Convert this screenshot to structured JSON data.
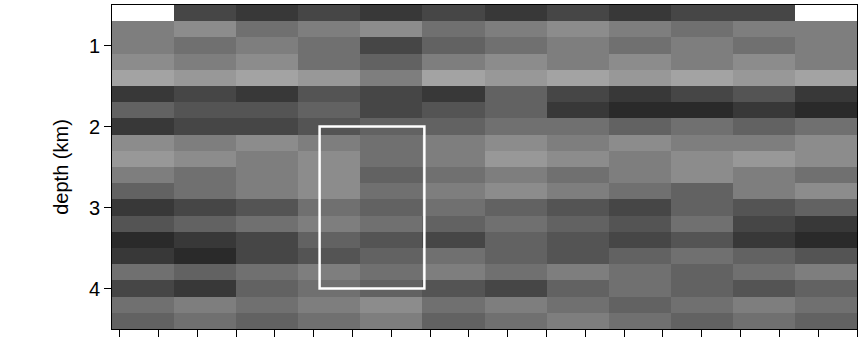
{
  "chart_data": {
    "type": "heatmap",
    "y_label": "depth (km)",
    "x": [
      0.6,
      2.2,
      3.8,
      5.4,
      7.0,
      8.6,
      10.2,
      11.8,
      13.4,
      15.0,
      16.6,
      18.2
    ],
    "depth": [
      0.6,
      0.8,
      1.0,
      1.2,
      1.4,
      1.6,
      1.8,
      2.0,
      2.2,
      2.4,
      2.6,
      2.8,
      3.0,
      3.2,
      3.4,
      3.6,
      3.8,
      4.0,
      4.2,
      4.4
    ],
    "amplitude": [
      [
        null,
        0.5,
        0.6,
        0.5,
        0.6,
        0.5,
        0.6,
        0.5,
        0.6,
        0.5,
        0.5,
        null
      ],
      [
        0.1,
        0.0,
        0.2,
        0.1,
        0.0,
        0.2,
        0.1,
        0.0,
        0.1,
        0.2,
        0.1,
        0.1
      ],
      [
        0.1,
        0.2,
        0.1,
        0.2,
        0.5,
        0.3,
        0.2,
        0.1,
        0.2,
        0.1,
        0.2,
        0.1
      ],
      [
        0.0,
        0.1,
        0.0,
        0.2,
        0.3,
        0.1,
        0.0,
        0.1,
        0.0,
        0.1,
        0.0,
        0.1
      ],
      [
        -0.2,
        -0.1,
        -0.2,
        -0.1,
        0.1,
        -0.2,
        -0.1,
        -0.2,
        -0.1,
        -0.2,
        -0.1,
        -0.2
      ],
      [
        0.6,
        0.5,
        0.6,
        0.4,
        0.5,
        0.6,
        0.3,
        0.5,
        0.6,
        0.5,
        0.4,
        0.6
      ],
      [
        0.3,
        0.4,
        0.4,
        0.3,
        0.5,
        0.4,
        0.3,
        0.6,
        0.7,
        0.7,
        0.6,
        0.7
      ],
      [
        0.6,
        0.5,
        0.5,
        0.4,
        0.3,
        0.3,
        0.2,
        0.2,
        0.3,
        0.2,
        0.3,
        0.2
      ],
      [
        0.0,
        0.1,
        0.0,
        0.1,
        0.2,
        0.1,
        0.0,
        0.1,
        0.0,
        0.1,
        0.1,
        0.0
      ],
      [
        -0.1,
        0.0,
        0.1,
        0.0,
        0.2,
        0.1,
        -0.1,
        0.0,
        0.1,
        0.0,
        -0.1,
        0.0
      ],
      [
        0.1,
        0.2,
        0.1,
        0.0,
        0.3,
        0.2,
        0.1,
        0.2,
        0.1,
        0.0,
        0.1,
        0.2
      ],
      [
        0.3,
        0.2,
        0.1,
        0.0,
        0.2,
        0.1,
        0.0,
        0.1,
        0.2,
        0.3,
        0.1,
        0.0
      ],
      [
        0.6,
        0.5,
        0.4,
        0.2,
        0.3,
        0.2,
        0.3,
        0.4,
        0.5,
        0.3,
        0.4,
        0.3
      ],
      [
        0.4,
        0.3,
        0.2,
        0.1,
        0.2,
        0.3,
        0.2,
        0.3,
        0.4,
        0.2,
        0.5,
        0.6
      ],
      [
        0.7,
        0.6,
        0.5,
        0.3,
        0.4,
        0.5,
        0.3,
        0.4,
        0.5,
        0.4,
        0.6,
        0.7
      ],
      [
        0.6,
        0.7,
        0.5,
        0.4,
        0.3,
        0.2,
        0.3,
        0.4,
        0.3,
        0.2,
        0.3,
        0.4
      ],
      [
        0.2,
        0.3,
        0.2,
        0.1,
        0.2,
        0.1,
        0.2,
        0.1,
        0.2,
        0.3,
        0.2,
        0.1
      ],
      [
        0.5,
        0.6,
        0.3,
        0.2,
        0.3,
        0.4,
        0.5,
        0.3,
        0.2,
        0.3,
        0.4,
        0.3
      ],
      [
        0.2,
        0.1,
        0.2,
        0.1,
        0.0,
        0.2,
        0.1,
        0.2,
        0.3,
        0.2,
        0.1,
        0.2
      ],
      [
        0.3,
        0.2,
        0.3,
        0.2,
        0.1,
        0.3,
        0.2,
        0.1,
        0.2,
        0.3,
        0.2,
        0.3
      ]
    ],
    "zlim": [
      -1,
      1
    ],
    "xlim": [
      -0.2,
      19
    ],
    "xticks": [
      0,
      1,
      2,
      3,
      4,
      5,
      6,
      7,
      8,
      9,
      10,
      11,
      12,
      13,
      14,
      15,
      16,
      17,
      18,
      19
    ],
    "ylim": [
      4.5,
      0.5
    ],
    "yticks": [
      1,
      2,
      3,
      4
    ],
    "tick_labels": "y",
    "grid": false,
    "box": {
      "x": [
        5.15,
        7.85
      ],
      "y": [
        2,
        4
      ],
      "color": "#ffffff"
    }
  }
}
